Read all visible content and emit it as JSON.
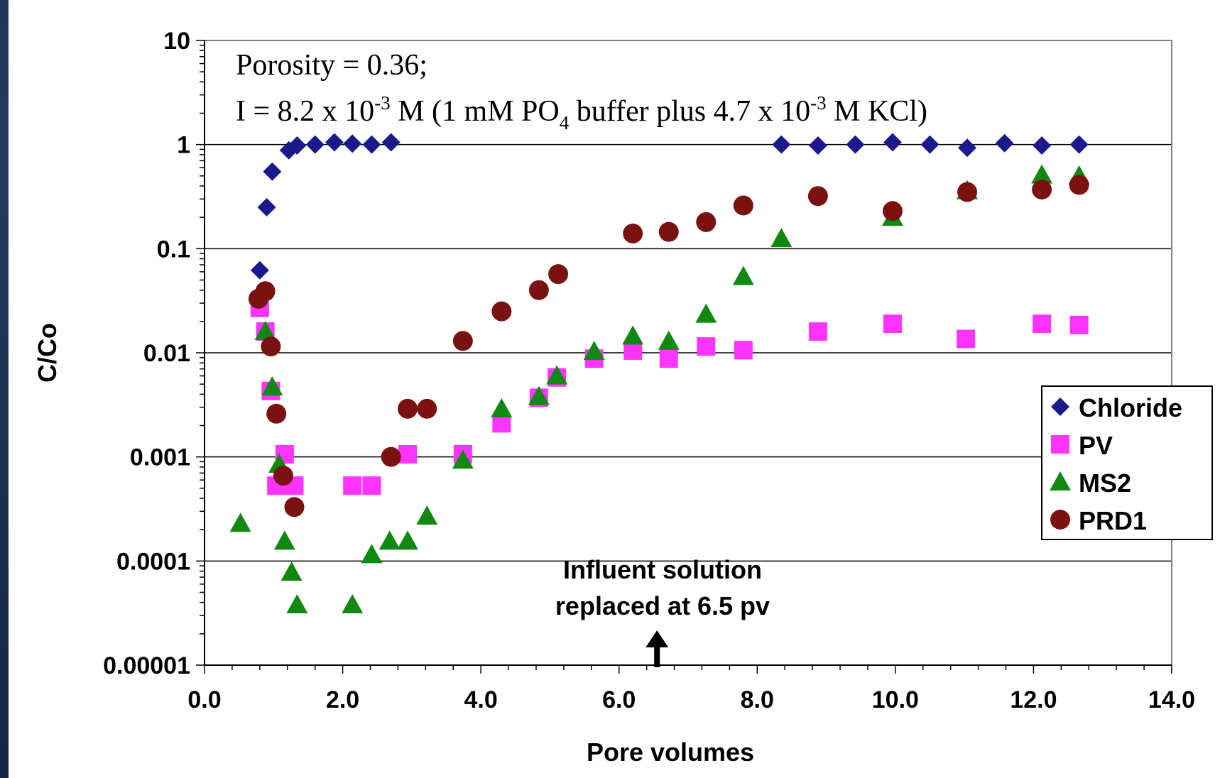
{
  "chart_data": {
    "type": "scatter",
    "title": "",
    "xlabel": "Pore volumes",
    "ylabel": "C/Co",
    "xlim": [
      0,
      14
    ],
    "ylim": [
      1e-05,
      10
    ],
    "yscale": "log",
    "grid": "horizontal major lines",
    "legend_position": "right",
    "x_ticks": [
      "0.0",
      "2.0",
      "4.0",
      "6.0",
      "8.0",
      "10.0",
      "12.0",
      "14.0"
    ],
    "y_ticks": [
      "0.00001",
      "0.0001",
      "0.001",
      "0.01",
      "0.1",
      "1",
      "10"
    ],
    "annotation": {
      "line1": "Porosity = 0.36;",
      "line2_prefix": "I = 8.2 x 10",
      "exp1": "-3",
      "line2_mid": " M (1 mM PO",
      "sub": "4",
      "line2_mid2": " buffer plus 4.7 x 10",
      "exp2": "-3",
      "line2_suffix": " M KCl)",
      "arrow_line1": "Influent solution",
      "arrow_line2": "replaced at 6.5 pv",
      "arrow_x": 6.55
    },
    "series": [
      {
        "name": "Chloride",
        "marker": "diamond",
        "color": "#1a1a8c",
        "points": [
          [
            0.8,
            0.062
          ],
          [
            0.9,
            0.25
          ],
          [
            0.98,
            0.55
          ],
          [
            1.22,
            0.88
          ],
          [
            1.34,
            0.98
          ],
          [
            1.6,
            1.0
          ],
          [
            1.88,
            1.05
          ],
          [
            2.14,
            1.02
          ],
          [
            2.42,
            1.0
          ],
          [
            2.7,
            1.05
          ],
          [
            8.35,
            1.0
          ],
          [
            8.88,
            0.98
          ],
          [
            9.42,
            1.0
          ],
          [
            9.96,
            1.05
          ],
          [
            10.5,
            1.0
          ],
          [
            11.04,
            0.93
          ],
          [
            11.58,
            1.03
          ],
          [
            12.12,
            0.98
          ],
          [
            12.66,
            1.0
          ]
        ]
      },
      {
        "name": "PV",
        "marker": "square",
        "color": "#ff33ff",
        "points": [
          [
            0.8,
            0.027
          ],
          [
            0.88,
            0.016
          ],
          [
            0.96,
            0.0043
          ],
          [
            1.04,
            0.00053
          ],
          [
            1.16,
            0.00106
          ],
          [
            1.3,
            0.00053
          ],
          [
            2.14,
            0.00053
          ],
          [
            2.42,
            0.00053
          ],
          [
            2.94,
            0.00106
          ],
          [
            3.74,
            0.00106
          ],
          [
            4.3,
            0.0021
          ],
          [
            4.84,
            0.0037
          ],
          [
            5.1,
            0.0058
          ],
          [
            5.64,
            0.0088
          ],
          [
            6.2,
            0.0105
          ],
          [
            6.72,
            0.0088
          ],
          [
            7.26,
            0.0115
          ],
          [
            7.8,
            0.0106
          ],
          [
            8.88,
            0.016
          ],
          [
            9.96,
            0.019
          ],
          [
            11.02,
            0.0136
          ],
          [
            12.12,
            0.019
          ],
          [
            12.66,
            0.0185
          ]
        ]
      },
      {
        "name": "MS2",
        "marker": "triangle",
        "color": "#118811",
        "points": [
          [
            0.52,
            0.00023
          ],
          [
            0.88,
            0.016
          ],
          [
            0.98,
            0.0047
          ],
          [
            1.08,
            0.00085
          ],
          [
            1.16,
            0.000155
          ],
          [
            1.26,
            7.8e-05
          ],
          [
            1.34,
            3.8e-05
          ],
          [
            2.14,
            3.8e-05
          ],
          [
            2.42,
            0.000115
          ],
          [
            2.68,
            0.000155
          ],
          [
            2.94,
            0.000155
          ],
          [
            3.22,
            0.00027
          ],
          [
            3.74,
            0.00093
          ],
          [
            4.3,
            0.0029
          ],
          [
            4.84,
            0.0038
          ],
          [
            5.1,
            0.006
          ],
          [
            5.64,
            0.0103
          ],
          [
            6.2,
            0.0145
          ],
          [
            6.72,
            0.0129
          ],
          [
            7.26,
            0.0235
          ],
          [
            7.8,
            0.054
          ],
          [
            8.35,
            0.125
          ],
          [
            9.96,
            0.2
          ],
          [
            11.04,
            0.36
          ],
          [
            12.12,
            0.51
          ],
          [
            12.66,
            0.5
          ]
        ]
      },
      {
        "name": "PRD1",
        "marker": "circle",
        "color": "#7a1212",
        "points": [
          [
            0.78,
            0.033
          ],
          [
            0.88,
            0.039
          ],
          [
            0.96,
            0.0115
          ],
          [
            1.04,
            0.0026
          ],
          [
            1.14,
            0.00066
          ],
          [
            1.3,
            0.00033
          ],
          [
            2.7,
            0.001
          ],
          [
            2.94,
            0.0029
          ],
          [
            3.22,
            0.0029
          ],
          [
            3.74,
            0.013
          ],
          [
            4.3,
            0.025
          ],
          [
            4.84,
            0.04
          ],
          [
            5.12,
            0.057
          ],
          [
            6.2,
            0.14
          ],
          [
            6.72,
            0.145
          ],
          [
            7.26,
            0.18
          ],
          [
            7.8,
            0.26
          ],
          [
            8.88,
            0.32
          ],
          [
            9.96,
            0.23
          ],
          [
            11.04,
            0.35
          ],
          [
            12.12,
            0.37
          ],
          [
            12.66,
            0.41
          ]
        ]
      }
    ]
  }
}
